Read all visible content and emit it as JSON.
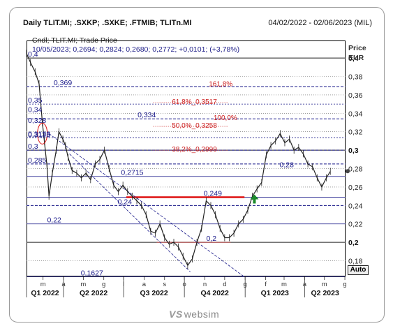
{
  "header": {
    "title": "Daily TLIT.MI; .SXKP; .SXKE; .FTMIB; TLITn.MI",
    "date_range": "04/02/2022 - 02/06/2023 (MIL)"
  },
  "info": {
    "line1": "Cndl; TLIT.MI; Trade Price",
    "line2": "10/05/2023; 0,2694; 0,2824; 0,2680; 0,2772; +0,0101; (+3,78%)"
  },
  "axis": {
    "title_line1": "Price",
    "title_line2": "EUR",
    "auto_label": "Auto",
    "y_ticks": [
      {
        "v": 0.4,
        "label": "0,4",
        "bold": true
      },
      {
        "v": 0.38,
        "label": "0,38",
        "bold": false
      },
      {
        "v": 0.36,
        "label": "0,36",
        "bold": false
      },
      {
        "v": 0.34,
        "label": "0,34",
        "bold": false
      },
      {
        "v": 0.32,
        "label": "0,32",
        "bold": false
      },
      {
        "v": 0.3,
        "label": "0,3",
        "bold": true
      },
      {
        "v": 0.28,
        "label": "0,28",
        "bold": false
      },
      {
        "v": 0.26,
        "label": "0,26",
        "bold": false
      },
      {
        "v": 0.24,
        "label": "0,24",
        "bold": false
      },
      {
        "v": 0.22,
        "label": "0,22",
        "bold": false
      },
      {
        "v": 0.2,
        "label": "0,2",
        "bold": true
      },
      {
        "v": 0.18,
        "label": "0,18",
        "bold": false
      }
    ],
    "month_ticks": [
      {
        "d": "2022-03-01",
        "label": "m"
      },
      {
        "d": "2022-04-01",
        "label": "a"
      },
      {
        "d": "2022-05-01",
        "label": "m"
      },
      {
        "d": "2022-06-01",
        "label": "g"
      },
      {
        "d": "2022-07-01",
        "label": "l"
      },
      {
        "d": "2022-08-01",
        "label": "a"
      },
      {
        "d": "2022-09-01",
        "label": "s"
      },
      {
        "d": "2022-10-01",
        "label": "o"
      },
      {
        "d": "2022-11-01",
        "label": "n"
      },
      {
        "d": "2022-12-01",
        "label": "d"
      },
      {
        "d": "2023-01-01",
        "label": "g"
      },
      {
        "d": "2023-02-01",
        "label": "f"
      },
      {
        "d": "2023-03-01",
        "label": "m"
      },
      {
        "d": "2023-04-01",
        "label": "a"
      },
      {
        "d": "2023-05-01",
        "label": "m"
      },
      {
        "d": "2023-06-01",
        "label": "g"
      }
    ],
    "quarters": [
      {
        "d": "2022-01-01",
        "label": "Q1 2022"
      },
      {
        "d": "2022-04-01",
        "label": "Q2 2022"
      },
      {
        "d": "2022-07-01",
        "label": "Q3 2022"
      },
      {
        "d": "2022-10-01",
        "label": "Q4 2022"
      },
      {
        "d": "2023-01-01",
        "label": "Q1 2023"
      },
      {
        "d": "2023-04-01",
        "label": "Q2 2023"
      }
    ]
  },
  "chart_data": {
    "type": "line",
    "title": "Daily TLIT.MI; .SXKP; .SXKE; .FTMIB; TLITn.MI",
    "ylabel": "Price EUR",
    "x_range": [
      "2022-02-04",
      "2023-06-02"
    ],
    "ylim": [
      0.163,
      0.419
    ],
    "series": [
      {
        "values_desc": "close",
        "x": [
          "2022-02-04",
          "2022-02-10",
          "2022-02-17",
          "2022-02-23",
          "2022-02-28",
          "2022-03-03",
          "2022-03-07",
          "2022-03-10",
          "2022-03-15",
          "2022-03-21",
          "2022-03-25",
          "2022-03-31",
          "2022-04-04",
          "2022-04-08",
          "2022-04-14",
          "2022-04-21",
          "2022-04-28",
          "2022-05-05",
          "2022-05-12",
          "2022-05-19",
          "2022-05-26",
          "2022-06-02",
          "2022-06-09",
          "2022-06-16",
          "2022-06-23",
          "2022-06-30",
          "2022-07-07",
          "2022-07-14",
          "2022-07-21",
          "2022-07-28",
          "2022-08-04",
          "2022-08-11",
          "2022-08-18",
          "2022-08-25",
          "2022-09-01",
          "2022-09-08",
          "2022-09-15",
          "2022-09-22",
          "2022-09-29",
          "2022-10-06",
          "2022-10-13",
          "2022-10-20",
          "2022-10-27",
          "2022-11-03",
          "2022-11-10",
          "2022-11-17",
          "2022-11-24",
          "2022-12-01",
          "2022-12-08",
          "2022-12-15",
          "2022-12-22",
          "2022-12-29",
          "2023-01-05",
          "2023-01-12",
          "2023-01-19",
          "2023-01-26",
          "2023-02-02",
          "2023-02-09",
          "2023-02-16",
          "2023-02-23",
          "2023-03-02",
          "2023-03-09",
          "2023-03-16",
          "2023-03-23",
          "2023-03-30",
          "2023-04-06",
          "2023-04-13",
          "2023-04-20",
          "2023-04-27",
          "2023-05-04",
          "2023-05-10"
        ],
        "y": [
          0.405,
          0.395,
          0.385,
          0.372,
          0.33,
          0.31,
          0.283,
          0.25,
          0.275,
          0.3,
          0.32,
          0.312,
          0.305,
          0.292,
          0.278,
          0.275,
          0.27,
          0.275,
          0.268,
          0.285,
          0.29,
          0.3,
          0.28,
          0.262,
          0.255,
          0.262,
          0.255,
          0.25,
          0.245,
          0.24,
          0.23,
          0.212,
          0.21,
          0.22,
          0.205,
          0.198,
          0.2,
          0.195,
          0.185,
          0.175,
          0.182,
          0.2,
          0.215,
          0.245,
          0.24,
          0.23,
          0.215,
          0.205,
          0.205,
          0.21,
          0.22,
          0.225,
          0.235,
          0.25,
          0.258,
          0.265,
          0.295,
          0.305,
          0.31,
          0.318,
          0.308,
          0.312,
          0.3,
          0.303,
          0.296,
          0.285,
          0.282,
          0.27,
          0.26,
          0.27,
          0.277
        ]
      }
    ],
    "annotations": [
      {
        "text": "161,8%",
        "y": 0.371,
        "x": "2022-11-05",
        "kind": "fib"
      },
      {
        "text": "61,8%_0,3517",
        "y": 0.3517,
        "x": "2022-09-10",
        "kind": "fib"
      },
      {
        "text": "100,0%",
        "y": 0.334,
        "x": "2022-11-12",
        "kind": "fib"
      },
      {
        "text": "50,0%_0,3258",
        "y": 0.3258,
        "x": "2022-09-10",
        "kind": "fib"
      },
      {
        "text": "38,2%_0,2999",
        "y": 0.2999,
        "x": "2022-09-10",
        "kind": "fib"
      },
      {
        "text": "0,4",
        "y": 0.4,
        "x": "2022-02-04",
        "kind": "level"
      },
      {
        "text": "0,3125",
        "y": 0.3125,
        "x": "2022-02-04",
        "kind": "level"
      },
      {
        "text": "0,369",
        "y": 0.369,
        "x": "2022-03-15",
        "kind": "level"
      },
      {
        "text": "0,35",
        "y": 0.35,
        "x": "2022-02-04",
        "kind": "level"
      },
      {
        "text": "0,34",
        "y": 0.34,
        "x": "2022-02-04",
        "kind": "level"
      },
      {
        "text": "0,334",
        "y": 0.334,
        "x": "2022-07-20",
        "kind": "level"
      },
      {
        "text": "0,328",
        "y": 0.328,
        "x": "2022-02-04",
        "kind": "level"
      },
      {
        "text": "0,3133",
        "y": 0.3133,
        "x": "2022-02-04",
        "kind": "level"
      },
      {
        "text": "0,3",
        "y": 0.3,
        "x": "2022-02-04",
        "kind": "level"
      },
      {
        "text": "0,285",
        "y": 0.285,
        "x": "2022-02-04",
        "kind": "level"
      },
      {
        "text": "0,28",
        "y": 0.28,
        "x": "2023-02-20",
        "kind": "level"
      },
      {
        "text": "0,2715",
        "y": 0.2715,
        "x": "2022-06-25",
        "kind": "level"
      },
      {
        "text": "0,24",
        "y": 0.24,
        "x": "2022-06-20",
        "kind": "level"
      },
      {
        "text": "0,249",
        "y": 0.249,
        "x": "2022-10-28",
        "kind": "level"
      },
      {
        "text": "0,22",
        "y": 0.22,
        "x": "2022-03-05",
        "kind": "level"
      },
      {
        "text": "0,2",
        "y": 0.2,
        "x": "2022-11-01",
        "kind": "level"
      },
      {
        "text": "0,1627",
        "y": 0.1627,
        "x": "2022-04-25",
        "kind": "level"
      }
    ],
    "grid": true
  }
}
